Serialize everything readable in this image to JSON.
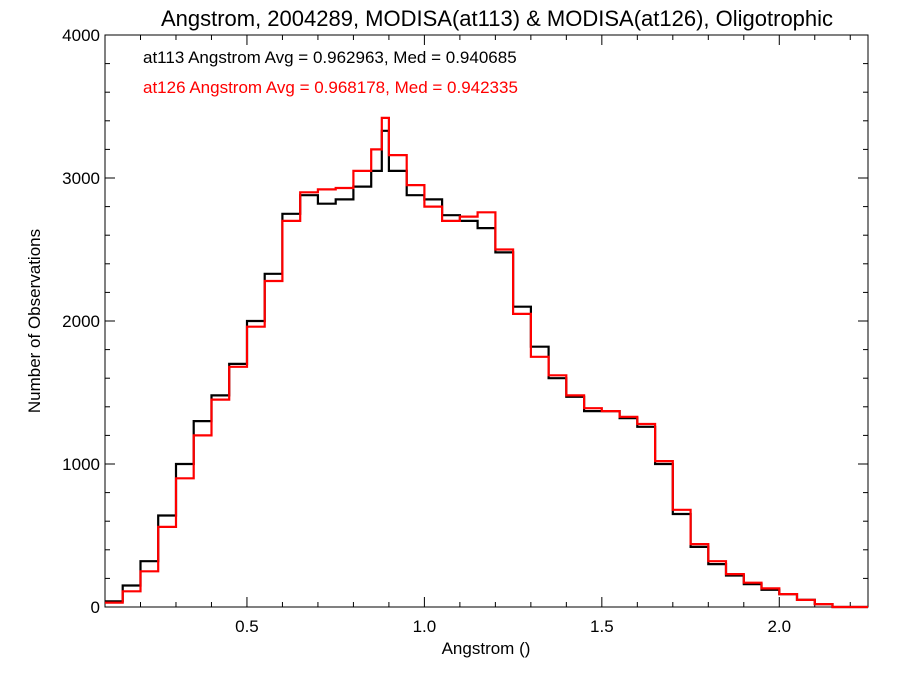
{
  "chart_data": {
    "type": "line",
    "step": true,
    "title": "Angstrom, 2004289, MODISA(at113) & MODISA(at126), Oligotrophic",
    "xlabel": "Angstrom ()",
    "ylabel": "Number of Observations",
    "xlim": [
      0.1,
      2.25
    ],
    "ylim": [
      0,
      4000
    ],
    "xticks": [
      0.5,
      1.0,
      1.5,
      2.0
    ],
    "xtick_labels": [
      "0.5",
      "1.0",
      "1.5",
      "2.0"
    ],
    "yticks": [
      0,
      1000,
      2000,
      3000,
      4000
    ],
    "ytick_labels": [
      "0",
      "1000",
      "2000",
      "3000",
      "4000"
    ],
    "grid": false,
    "legend_position": "top-left",
    "annotations": [
      {
        "text": "at113 Angstrom Avg = 0.962963, Med = 0.940685",
        "color": "#000000"
      },
      {
        "text": "at126 Angstrom Avg = 0.968178, Med = 0.942335",
        "color": "#ff0000"
      }
    ],
    "series": [
      {
        "name": "at113",
        "color": "#000000",
        "x": [
          0.1,
          0.15,
          0.2,
          0.25,
          0.3,
          0.35,
          0.4,
          0.45,
          0.5,
          0.55,
          0.6,
          0.65,
          0.7,
          0.75,
          0.8,
          0.85,
          0.88,
          0.9,
          0.95,
          1.0,
          1.05,
          1.1,
          1.15,
          1.2,
          1.25,
          1.3,
          1.35,
          1.4,
          1.45,
          1.5,
          1.55,
          1.6,
          1.65,
          1.7,
          1.75,
          1.8,
          1.85,
          1.9,
          1.95,
          2.0,
          2.05,
          2.1,
          2.15,
          2.2,
          2.25
        ],
        "values": [
          40,
          150,
          320,
          640,
          1000,
          1300,
          1480,
          1700,
          2000,
          2330,
          2750,
          2880,
          2820,
          2850,
          2940,
          3050,
          3330,
          3050,
          2880,
          2850,
          2740,
          2700,
          2650,
          2480,
          2100,
          1820,
          1600,
          1470,
          1370,
          1370,
          1320,
          1260,
          1000,
          650,
          420,
          300,
          220,
          160,
          120,
          90,
          50,
          20,
          0,
          0,
          0
        ]
      },
      {
        "name": "at126",
        "color": "#ff0000",
        "x": [
          0.1,
          0.15,
          0.2,
          0.25,
          0.3,
          0.35,
          0.4,
          0.45,
          0.5,
          0.55,
          0.6,
          0.65,
          0.7,
          0.75,
          0.8,
          0.85,
          0.88,
          0.9,
          0.95,
          1.0,
          1.05,
          1.1,
          1.15,
          1.2,
          1.25,
          1.3,
          1.35,
          1.4,
          1.45,
          1.5,
          1.55,
          1.6,
          1.65,
          1.7,
          1.75,
          1.8,
          1.85,
          1.9,
          1.95,
          2.0,
          2.05,
          2.1,
          2.15,
          2.2,
          2.25
        ],
        "values": [
          30,
          110,
          250,
          560,
          900,
          1200,
          1450,
          1680,
          1960,
          2280,
          2700,
          2900,
          2920,
          2930,
          3050,
          3200,
          3420,
          3160,
          2950,
          2800,
          2700,
          2730,
          2760,
          2500,
          2050,
          1750,
          1620,
          1480,
          1390,
          1370,
          1330,
          1280,
          1020,
          680,
          440,
          320,
          230,
          170,
          130,
          90,
          50,
          20,
          0,
          0,
          0
        ]
      }
    ]
  }
}
